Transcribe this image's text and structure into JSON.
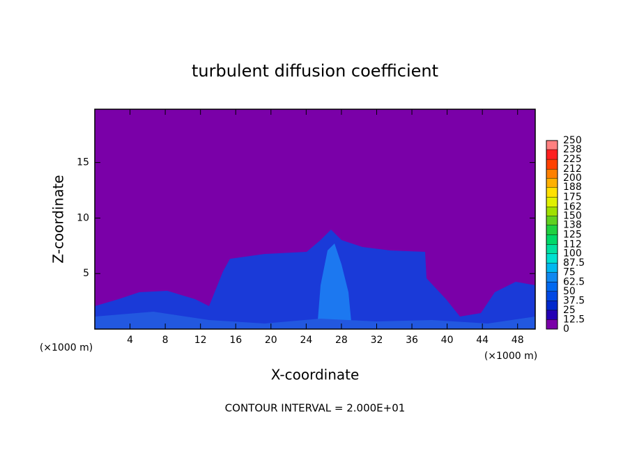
{
  "chart_data": {
    "type": "contour",
    "title": "turbulent diffusion coefficient",
    "xlabel": "X-coordinate",
    "ylabel": "Z-coordinate",
    "x_unit_labels": [
      "(×1000 m)",
      "(×1000 m)"
    ],
    "annotation": "CONTOUR INTERVAL = 2.000E+01",
    "xlim": [
      0,
      50
    ],
    "xticks": [
      4,
      8,
      12,
      16,
      20,
      24,
      28,
      32,
      36,
      40,
      44,
      48
    ],
    "ylim": [
      0,
      19.8
    ],
    "yticks": [
      5,
      10,
      15
    ],
    "colorbar": {
      "ticks": [
        0,
        12.5,
        25,
        37.5,
        50,
        62.5,
        75,
        87.5,
        100,
        112,
        125,
        138,
        150,
        162,
        175,
        188,
        200,
        212,
        225,
        238,
        250
      ],
      "colors": [
        "#7a00a8",
        "#2400b4",
        "#0028cc",
        "#0048e4",
        "#0068f0",
        "#1088f0",
        "#00b8f0",
        "#00e0d0",
        "#00e0a0",
        "#00d868",
        "#20d040",
        "#60d020",
        "#a0e000",
        "#e0f000",
        "#ffe000",
        "#ffb000",
        "#ff8000",
        "#ff4000",
        "#ff2020",
        "#ff8080"
      ]
    }
  }
}
